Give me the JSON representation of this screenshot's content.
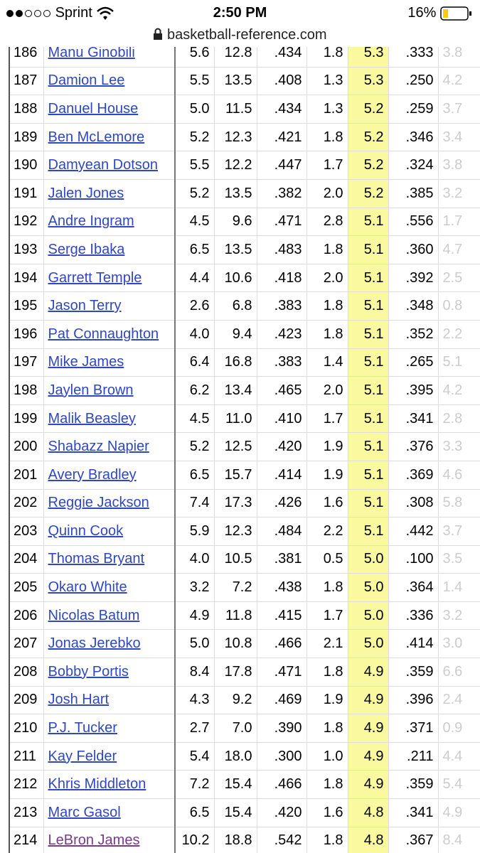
{
  "status_bar": {
    "carrier": "Sprint",
    "time": "2:50 PM",
    "battery": "16%"
  },
  "url_bar": {
    "url": "basketball-reference.com"
  },
  "table": {
    "rows": [
      [
        "186",
        "Manu Ginobili",
        "5.6",
        "12.8",
        ".434",
        "1.8",
        "5.3",
        ".333",
        "3.8"
      ],
      [
        "187",
        "Damion Lee",
        "5.5",
        "13.5",
        ".408",
        "1.3",
        "5.3",
        ".250",
        "4.2"
      ],
      [
        "188",
        "Danuel House",
        "5.0",
        "11.5",
        ".434",
        "1.3",
        "5.2",
        ".259",
        "3.7"
      ],
      [
        "189",
        "Ben McLemore",
        "5.2",
        "12.3",
        ".421",
        "1.8",
        "5.2",
        ".346",
        "3.4"
      ],
      [
        "190",
        "Damyean Dotson",
        "5.5",
        "12.2",
        ".447",
        "1.7",
        "5.2",
        ".324",
        "3.8"
      ],
      [
        "191",
        "Jalen Jones",
        "5.2",
        "13.5",
        ".382",
        "2.0",
        "5.2",
        ".385",
        "3.2"
      ],
      [
        "192",
        "Andre Ingram",
        "4.5",
        "9.6",
        ".471",
        "2.8",
        "5.1",
        ".556",
        "1.7"
      ],
      [
        "193",
        "Serge Ibaka",
        "6.5",
        "13.5",
        ".483",
        "1.8",
        "5.1",
        ".360",
        "4.7"
      ],
      [
        "194",
        "Garrett Temple",
        "4.4",
        "10.6",
        ".418",
        "2.0",
        "5.1",
        ".392",
        "2.5"
      ],
      [
        "195",
        "Jason Terry",
        "2.6",
        "6.8",
        ".383",
        "1.8",
        "5.1",
        ".348",
        "0.8"
      ],
      [
        "196",
        "Pat Connaughton",
        "4.0",
        "9.4",
        ".423",
        "1.8",
        "5.1",
        ".352",
        "2.2"
      ],
      [
        "197",
        "Mike James",
        "6.4",
        "16.8",
        ".383",
        "1.4",
        "5.1",
        ".265",
        "5.1"
      ],
      [
        "198",
        "Jaylen Brown",
        "6.2",
        "13.4",
        ".465",
        "2.0",
        "5.1",
        ".395",
        "4.2"
      ],
      [
        "199",
        "Malik Beasley",
        "4.5",
        "11.0",
        ".410",
        "1.7",
        "5.1",
        ".341",
        "2.8"
      ],
      [
        "200",
        "Shabazz Napier",
        "5.2",
        "12.5",
        ".420",
        "1.9",
        "5.1",
        ".376",
        "3.3"
      ],
      [
        "201",
        "Avery Bradley",
        "6.5",
        "15.7",
        ".414",
        "1.9",
        "5.1",
        ".369",
        "4.6"
      ],
      [
        "202",
        "Reggie Jackson",
        "7.4",
        "17.3",
        ".426",
        "1.6",
        "5.1",
        ".308",
        "5.8"
      ],
      [
        "203",
        "Quinn Cook",
        "5.9",
        "12.3",
        ".484",
        "2.2",
        "5.1",
        ".442",
        "3.7"
      ],
      [
        "204",
        "Thomas Bryant",
        "4.0",
        "10.5",
        ".381",
        "0.5",
        "5.0",
        ".100",
        "3.5"
      ],
      [
        "205",
        "Okaro White",
        "3.2",
        "7.2",
        ".438",
        "1.8",
        "5.0",
        ".364",
        "1.4"
      ],
      [
        "206",
        "Nicolas Batum",
        "4.9",
        "11.8",
        ".415",
        "1.7",
        "5.0",
        ".336",
        "3.2"
      ],
      [
        "207",
        "Jonas Jerebko",
        "5.0",
        "10.8",
        ".466",
        "2.1",
        "5.0",
        ".414",
        "3.0"
      ],
      [
        "208",
        "Bobby Portis",
        "8.4",
        "17.8",
        ".471",
        "1.8",
        "4.9",
        ".359",
        "6.6"
      ],
      [
        "209",
        "Josh Hart",
        "4.3",
        "9.2",
        ".469",
        "1.9",
        "4.9",
        ".396",
        "2.4"
      ],
      [
        "210",
        "P.J. Tucker",
        "2.7",
        "7.0",
        ".390",
        "1.8",
        "4.9",
        ".371",
        "0.9"
      ],
      [
        "211",
        "Kay Felder",
        "5.4",
        "18.0",
        ".300",
        "1.0",
        "4.9",
        ".211",
        "4.4"
      ],
      [
        "212",
        "Khris Middleton",
        "7.2",
        "15.4",
        ".466",
        "1.8",
        "4.9",
        ".359",
        "5.4"
      ],
      [
        "213",
        "Marc Gasol",
        "6.5",
        "15.4",
        ".420",
        "1.6",
        "4.8",
        ".341",
        "4.9"
      ],
      [
        "214",
        "LeBron James",
        "10.2",
        "18.8",
        ".542",
        "1.8",
        "4.8",
        ".367",
        "8.4"
      ]
    ]
  }
}
